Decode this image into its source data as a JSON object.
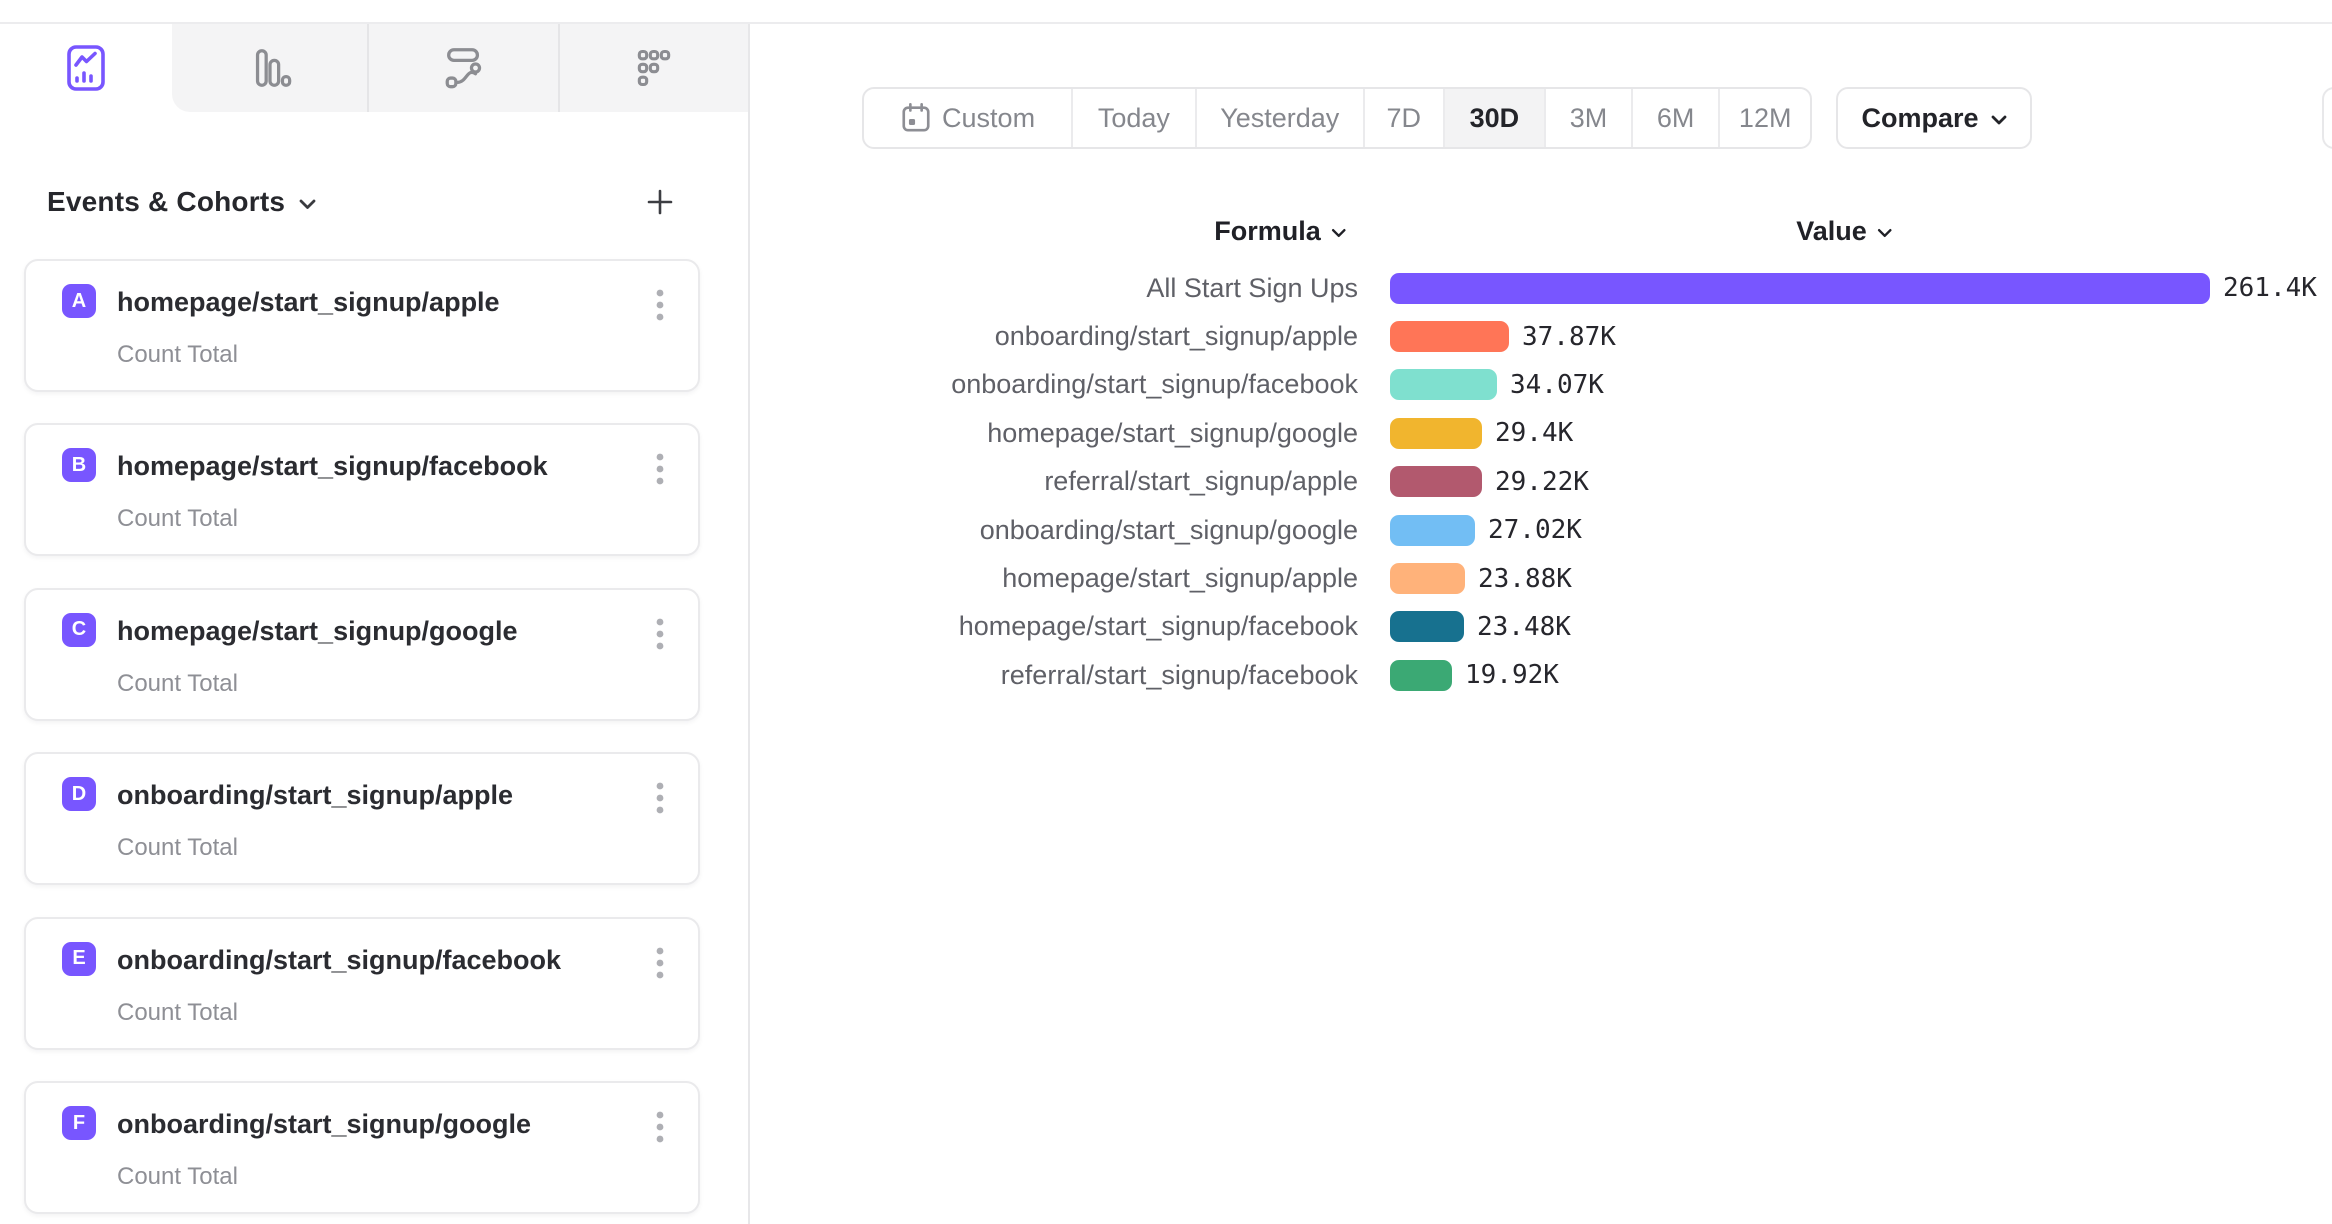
{
  "app": {
    "accent_color": "#7856FF"
  },
  "sidebar": {
    "tabs": [
      {
        "id": "insights",
        "icon": "line-chart-icon",
        "active": true
      },
      {
        "id": "bar",
        "icon": "bar-chart-icon",
        "active": false
      },
      {
        "id": "flows",
        "icon": "flows-icon",
        "active": false
      },
      {
        "id": "retention",
        "icon": "retention-grid-icon",
        "active": false
      }
    ],
    "section": {
      "title": "Events & Cohorts"
    },
    "badge_color": "#7856FF",
    "events": [
      {
        "letter": "A",
        "name": "homepage/start_signup/apple",
        "metric": "Count Total"
      },
      {
        "letter": "B",
        "name": "homepage/start_signup/facebook",
        "metric": "Count Total"
      },
      {
        "letter": "C",
        "name": "homepage/start_signup/google",
        "metric": "Count Total"
      },
      {
        "letter": "D",
        "name": "onboarding/start_signup/apple",
        "metric": "Count Total"
      },
      {
        "letter": "E",
        "name": "onboarding/start_signup/facebook",
        "metric": "Count Total"
      },
      {
        "letter": "F",
        "name": "onboarding/start_signup/google",
        "metric": "Count Total"
      }
    ]
  },
  "toolbar": {
    "date_segments": [
      {
        "label": "Custom",
        "icon": "calendar-icon",
        "active": false
      },
      {
        "label": "Today",
        "active": false
      },
      {
        "label": "Yesterday",
        "active": false
      },
      {
        "label": "7D",
        "active": false
      },
      {
        "label": "30D",
        "active": true
      },
      {
        "label": "3M",
        "active": false
      },
      {
        "label": "6M",
        "active": false
      },
      {
        "label": "12M",
        "active": false
      }
    ],
    "compare_label": "Compare"
  },
  "chart_data": {
    "type": "bar",
    "orientation": "horizontal",
    "column_headers": {
      "formula": "Formula",
      "value": "Value"
    },
    "categories": [
      "All Start Sign Ups",
      "onboarding/start_signup/apple",
      "onboarding/start_signup/facebook",
      "homepage/start_signup/google",
      "referral/start_signup/apple",
      "onboarding/start_signup/google",
      "homepage/start_signup/apple",
      "homepage/start_signup/facebook",
      "referral/start_signup/facebook"
    ],
    "values": [
      261400,
      37870,
      34070,
      29400,
      29220,
      27020,
      23880,
      23480,
      19920
    ],
    "value_labels": [
      "261.4K",
      "37.87K",
      "34.07K",
      "29.4K",
      "29.22K",
      "27.02K",
      "23.88K",
      "23.48K",
      "19.92K"
    ],
    "colors": [
      "#7856FF",
      "#FF7557",
      "#7FE0CF",
      "#F1B52E",
      "#B2596E",
      "#72BEF4",
      "#FFB27A",
      "#17718F",
      "#3BA974"
    ],
    "x_max": 261400,
    "legend": "none",
    "grid": "off"
  }
}
